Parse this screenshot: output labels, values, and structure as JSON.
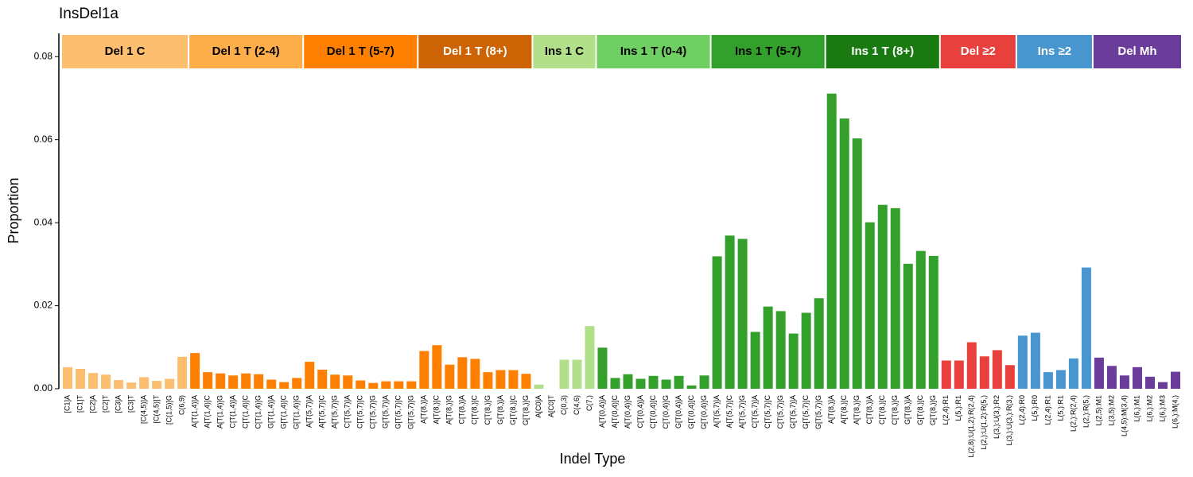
{
  "chart_data": {
    "type": "bar",
    "title": "InsDel1a",
    "x_label": "Indel Type",
    "y_label": "Proportion",
    "ylim": [
      0,
      0.0856
    ],
    "yticks": [
      {
        "value": 0,
        "label": "0.00"
      },
      {
        "value": 0.02,
        "label": "0.02"
      },
      {
        "value": 0.04,
        "label": "0.04"
      },
      {
        "value": 0.06,
        "label": "0.06"
      },
      {
        "value": 0.08,
        "label": "0.08"
      }
    ],
    "groups": [
      {
        "name": "Del 1 C",
        "color": "#fdbf6f",
        "label_color": "#000000",
        "categories": [
          "[C1]A",
          "[C1]T",
          "[C2]A",
          "[C2]T",
          "[C3]A",
          "[C3]T",
          "[C(4,5)]A",
          "[C(4,5)]T",
          "[C(1,5)]G",
          "C(6,9)"
        ],
        "values": [
          0.0052,
          0.0048,
          0.0038,
          0.0034,
          0.0021,
          0.0015,
          0.0028,
          0.0019,
          0.0024,
          0.0077
        ]
      },
      {
        "name": "Del 1 T (2-4)",
        "color": "#fdae4b",
        "bar_color": "#ff8000",
        "label_color": "#000000",
        "categories": [
          "A[T(1,4)]A",
          "A[T(1,4)]C",
          "A[T(1,4)]G",
          "C[T(1,4)]A",
          "C[T(1,4)]C",
          "C[T(1,4)]G",
          "G[T(1,4)]A",
          "G[T(1,4)]C",
          "G[T(1,4)]G"
        ],
        "values": [
          0.0086,
          0.004,
          0.0037,
          0.0032,
          0.0037,
          0.0035,
          0.0022,
          0.0016,
          0.0026
        ]
      },
      {
        "name": "Del 1 T (5-7)",
        "color": "#ff8000",
        "label_color": "#000000",
        "categories": [
          "A[T(5,7)]A",
          "A[T(5,7)]C",
          "A[T(5,7)]G",
          "C[T(5,7)]A",
          "C[T(5,7)]C",
          "C[T(5,7)]G",
          "G[T(5,7)]A",
          "G[T(5,7)]C",
          "G[T(5,7)]G"
        ],
        "values": [
          0.0065,
          0.0046,
          0.0034,
          0.0032,
          0.002,
          0.0014,
          0.0018,
          0.0018,
          0.0018
        ]
      },
      {
        "name": "Del 1 T (8+)",
        "color": "#cc6304",
        "bar_color": "#ff8000",
        "label_color": "#ffffff",
        "categories": [
          "A[T(8,)]A",
          "A[T(8,)]C",
          "A[T(8,)]G",
          "C[T(8,)]A",
          "C[T(8,)]C",
          "C[T(8,)]G",
          "G[T(8,)]A",
          "G[T(8,)]C",
          "G[T(8,)]G"
        ],
        "values": [
          0.0091,
          0.0105,
          0.0058,
          0.0076,
          0.0072,
          0.004,
          0.0045,
          0.0045,
          0.0036
        ]
      },
      {
        "name": "Ins 1 C",
        "color": "#b2df8a",
        "label_color": "#000000",
        "categories": [
          "A[C0]A",
          "A[C0]T",
          "C(0,3)",
          "C(4,6)",
          "C(7,)"
        ],
        "values": [
          0.001,
          0,
          0.007,
          0.007,
          0.0151
        ]
      },
      {
        "name": "Ins 1 T (0-4)",
        "color": "#6fcf63",
        "bar_color": "#33a02c",
        "label_color": "#000000",
        "categories": [
          "A[T(0,4)]A",
          "A[T(0,4)]C",
          "A[T(0,4)]G",
          "C[T(0,4)]A",
          "C[T(0,4)]C",
          "C[T(0,4)]G",
          "G[T(0,4)]A",
          "G[T(0,4)]C",
          "G[T(0,4)]G"
        ],
        "values": [
          0.0099,
          0.0026,
          0.0035,
          0.0024,
          0.0031,
          0.0022,
          0.0031,
          0.0008,
          0.0032
        ]
      },
      {
        "name": "Ins 1 T (5-7)",
        "color": "#33a02c",
        "label_color": "#000000",
        "categories": [
          "A[T(5,7)]A",
          "A[T(5,7)]C",
          "A[T(5,7)]G",
          "C[T(5,7)]A",
          "C[T(5,7)]C",
          "C[T(5,7)]G",
          "G[T(5,7)]A",
          "G[T(5,7)]C",
          "G[T(5,7)]G"
        ],
        "values": [
          0.0319,
          0.0369,
          0.0361,
          0.0137,
          0.0198,
          0.0187,
          0.0133,
          0.0183,
          0.0218
        ]
      },
      {
        "name": "Ins 1 T (8+)",
        "color": "#1a7a12",
        "bar_color": "#33a02c",
        "label_color": "#ffffff",
        "categories": [
          "A[T(8,)]A",
          "A[T(8,)]C",
          "A[T(8,)]G",
          "C[T(8,)]A",
          "C[T(8,)]C",
          "C[T(8,)]G",
          "G[T(8,)]A",
          "G[T(8,)]C",
          "G[T(8,)]G"
        ],
        "values": [
          0.0711,
          0.0651,
          0.0603,
          0.0401,
          0.0443,
          0.0435,
          0.0301,
          0.0332,
          0.032
        ]
      },
      {
        "name": "Del ≥2",
        "color": "#e8413d",
        "label_color": "#ffffff",
        "categories": [
          "L(2,4):R1",
          "L(5,):R1",
          "L(2,8):U(1,2):R(2,4)",
          "L(2,):U(1,2):R(5,)",
          "L(3,):U(3,):R2",
          "L(3,):U(3,):R(3,)"
        ],
        "values": [
          0.0068,
          0.0068,
          0.0112,
          0.0078,
          0.0093,
          0.0057
        ]
      },
      {
        "name": "Ins ≥2",
        "color": "#4896cf",
        "label_color": "#ffffff",
        "categories": [
          "L(2,4):R0",
          "L(5,):R0",
          "L(2,4):R1",
          "L(5,):R1",
          "L(2,):R(2,4)",
          "L(2,):R(5,)"
        ],
        "values": [
          0.0128,
          0.0135,
          0.004,
          0.0045,
          0.0073,
          0.0292
        ]
      },
      {
        "name": "Del Mh",
        "color": "#6a3d9a",
        "label_color": "#ffffff",
        "categories": [
          "L(2,5):M1",
          "L(3,5):M2",
          "L(4,5):M(3,4)",
          "L(6,):M1",
          "L(6,):M2",
          "L(6,):M3",
          "L(6,):M(4,)"
        ],
        "values": [
          0.0075,
          0.0055,
          0.0032,
          0.0052,
          0.0029,
          0.0016,
          0.0041
        ]
      }
    ]
  }
}
